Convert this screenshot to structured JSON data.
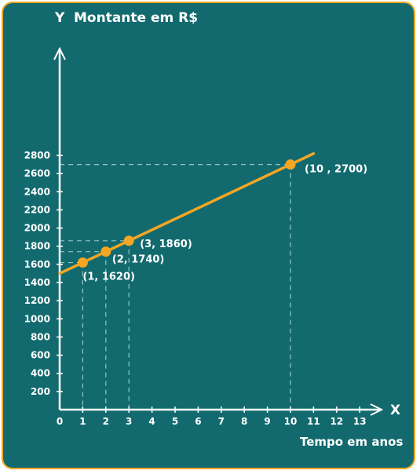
{
  "chart_data": {
    "type": "line",
    "title": "Montante em R$",
    "y_axis_letter": "Y",
    "x_axis_letter": "X",
    "xlabel": "Tempo em anos",
    "ylabel": "Montante em R$",
    "xlim": [
      0,
      13
    ],
    "ylim": [
      0,
      2800
    ],
    "x_ticks": [
      "0",
      "1",
      "2",
      "3",
      "4",
      "5",
      "6",
      "7",
      "8",
      "9",
      "10",
      "11",
      "12",
      "13"
    ],
    "y_ticks": [
      "200",
      "400",
      "600",
      "800",
      "1000",
      "1200",
      "1400",
      "1600",
      "1800",
      "2000",
      "2200",
      "2400",
      "2600",
      "2800"
    ],
    "line": {
      "intercept": 1500,
      "slope": 120,
      "x_range": [
        0,
        11
      ]
    },
    "points": [
      {
        "x": 1,
        "y": 1620,
        "label": "(1, 1620)"
      },
      {
        "x": 2,
        "y": 1740,
        "label": "(2, 1740)"
      },
      {
        "x": 3,
        "y": 1860,
        "label": "(3, 1860)"
      },
      {
        "x": 10,
        "y": 2700,
        "label": "(10 , 2700)"
      }
    ],
    "colors": {
      "background": "#136a6e",
      "line": "#f5a623",
      "axes": "#ffffff",
      "guides": "#8fc7c8"
    }
  }
}
